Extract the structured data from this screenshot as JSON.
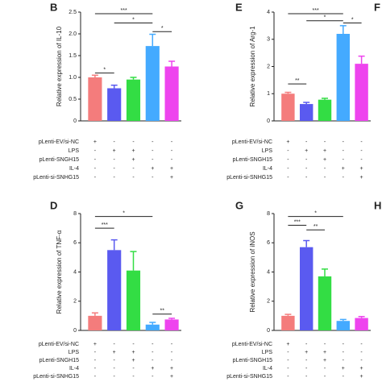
{
  "chart_data": [
    {
      "type": "bar",
      "panel": "B",
      "ylabel": "Relative expression of IL-10",
      "categories": [
        "pLenti-EV/si-NC",
        "LPS",
        "pLenti-SNGH15",
        "IL-4",
        "pLenti-si-SNHG15"
      ],
      "colors": [
        "#f47c7c",
        "#5a5af0",
        "#33dd44",
        "#44aaff",
        "#ee44ee"
      ],
      "values": [
        1.0,
        0.75,
        0.95,
        1.72,
        1.25
      ],
      "errors": [
        0.05,
        0.07,
        0.05,
        0.27,
        0.12
      ],
      "ylim": [
        0,
        2.5
      ],
      "yticks": [
        0,
        0.5,
        1.0,
        1.5,
        2.0,
        2.5
      ],
      "yticks_labels": [
        "0",
        "0.5",
        "1.0",
        "1.5",
        "2.0",
        "2.5"
      ],
      "conditions": [
        [
          "+",
          "-",
          "-",
          "-",
          "-"
        ],
        [
          "-",
          "+",
          "+",
          "-",
          "-"
        ],
        [
          "-",
          "-",
          "+",
          "-",
          "-"
        ],
        [
          "-",
          "-",
          "-",
          "+",
          "+"
        ],
        [
          "-",
          "-",
          "-",
          "-",
          "+"
        ]
      ],
      "comparisons": [
        "***",
        "*",
        "*",
        "*"
      ]
    },
    {
      "type": "bar",
      "panel": "E",
      "ylabel": "Relative expression of Arg-1",
      "categories": [
        "pLenti-EV/si-NC",
        "LPS",
        "pLenti-SNGH15",
        "IL-4",
        "pLenti-si-SNHG15"
      ],
      "colors": [
        "#f47c7c",
        "#5a5af0",
        "#33dd44",
        "#44aaff",
        "#ee44ee"
      ],
      "values": [
        1.0,
        0.62,
        0.78,
        3.2,
        2.1
      ],
      "errors": [
        0.05,
        0.06,
        0.05,
        0.3,
        0.28
      ],
      "ylim": [
        0,
        4
      ],
      "yticks": [
        0,
        1,
        2,
        3,
        4
      ],
      "yticks_labels": [
        "0",
        "1",
        "2",
        "3",
        "4"
      ],
      "conditions": [
        [
          "+",
          "-",
          "-",
          "-",
          "-"
        ],
        [
          "-",
          "+",
          "+",
          "-",
          "-"
        ],
        [
          "-",
          "-",
          "+",
          "-",
          "-"
        ],
        [
          "-",
          "-",
          "-",
          "+",
          "+"
        ],
        [
          "-",
          "-",
          "-",
          "-",
          "+"
        ]
      ],
      "comparisons": [
        "***",
        "*",
        "*",
        "**"
      ]
    },
    {
      "type": "bar",
      "panel": "D",
      "ylabel": "Relative expression of TNF-α",
      "categories": [
        "pLenti-EV/si-NC",
        "LPS",
        "pLenti-SNGH15",
        "IL-4",
        "pLenti-si-SNHG15"
      ],
      "colors": [
        "#f47c7c",
        "#5a5af0",
        "#33dd44",
        "#44aaff",
        "#ee44ee"
      ],
      "values": [
        1.0,
        5.5,
        4.1,
        0.4,
        0.75
      ],
      "errors": [
        0.2,
        0.7,
        1.3,
        0.15,
        0.08
      ],
      "ylim": [
        0,
        8
      ],
      "yticks": [
        0,
        2,
        4,
        6,
        8
      ],
      "yticks_labels": [
        "0",
        "2",
        "4",
        "6",
        "8"
      ],
      "conditions": [
        [
          "+",
          "-",
          "-",
          "-",
          "-"
        ],
        [
          "-",
          "+",
          "+",
          "-",
          "-"
        ],
        [
          "-",
          "-",
          "+",
          "-",
          "-"
        ],
        [
          "-",
          "-",
          "-",
          "+",
          "+"
        ],
        [
          "-",
          "-",
          "-",
          "-",
          "+"
        ]
      ],
      "comparisons": [
        "*",
        "***",
        "**"
      ]
    },
    {
      "type": "bar",
      "panel": "G",
      "ylabel": "Relative expression of iNOS",
      "categories": [
        "pLenti-EV/si-NC",
        "LPS",
        "pLenti-SNGH15",
        "IL-4",
        "pLenti-si-SNHG15"
      ],
      "colors": [
        "#f47c7c",
        "#5a5af0",
        "#33dd44",
        "#44aaff",
        "#ee44ee"
      ],
      "values": [
        1.0,
        5.7,
        3.7,
        0.65,
        0.85
      ],
      "errors": [
        0.1,
        0.45,
        0.5,
        0.1,
        0.1
      ],
      "ylim": [
        0,
        8
      ],
      "yticks": [
        0,
        2,
        4,
        6,
        8
      ],
      "yticks_labels": [
        "0",
        "2",
        "4",
        "6",
        "8"
      ],
      "conditions": [
        [
          "+",
          "-",
          "-",
          "-",
          "-"
        ],
        [
          "-",
          "+",
          "+",
          "-",
          "-"
        ],
        [
          "-",
          "-",
          "+",
          "-",
          "-"
        ],
        [
          "-",
          "-",
          "-",
          "+",
          "+"
        ],
        [
          "-",
          "-",
          "-",
          "-",
          "+"
        ]
      ],
      "comparisons": [
        "*",
        "***",
        "**"
      ]
    }
  ],
  "edge_letters": [
    "F",
    "H"
  ]
}
